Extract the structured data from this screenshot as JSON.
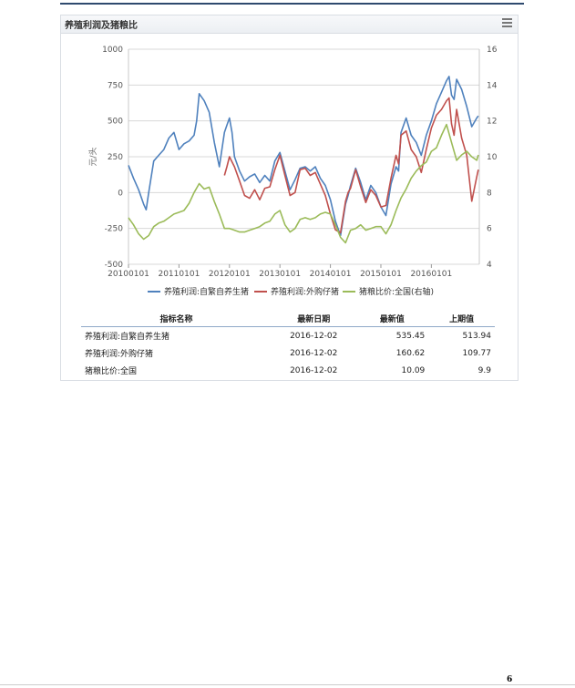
{
  "panel": {
    "title": "养殖利润及猪粮比"
  },
  "table": {
    "headers": {
      "name": "指标名称",
      "date": "最新日期",
      "latest": "最新值",
      "previous": "上期值"
    },
    "rows": [
      {
        "name": "养殖利润:自繁自养生猪",
        "date": "2016-12-02",
        "latest": "535.45",
        "previous": "513.94"
      },
      {
        "name": "养殖利润:外购仔猪",
        "date": "2016-12-02",
        "latest": "160.62",
        "previous": "109.77"
      },
      {
        "name": "猪粮比价:全国",
        "date": "2016-12-02",
        "latest": "10.09",
        "previous": "9.9"
      }
    ]
  },
  "page_number": "6",
  "chart_data": {
    "type": "line",
    "title": "",
    "ylabel": "元/头",
    "y2label": "",
    "ylim": [
      -500,
      1000
    ],
    "y2lim": [
      4,
      16
    ],
    "yticks": [
      "1000",
      "750",
      "500",
      "250",
      "0",
      "-250",
      "-500"
    ],
    "y2ticks": [
      "16",
      "14",
      "12",
      "10",
      "8",
      "6",
      "4"
    ],
    "xlim": [
      2010.0,
      2016.95
    ],
    "xticks": [
      {
        "value": 2010.0,
        "label": "20100101"
      },
      {
        "value": 2011.0,
        "label": "20110101"
      },
      {
        "value": 2012.0,
        "label": "20120101"
      },
      {
        "value": 2013.0,
        "label": "20130101"
      },
      {
        "value": 2014.0,
        "label": "20140101"
      },
      {
        "value": 2015.0,
        "label": "20150101"
      },
      {
        "value": 2016.0,
        "label": "20160101"
      }
    ],
    "grid": true,
    "legend": "bottom",
    "series": [
      {
        "name": "养殖利润:自繁自养生猪",
        "axis": "left",
        "color": "#4f81bd",
        "x": [
          2010.0,
          2010.1,
          2010.2,
          2010.3,
          2010.35,
          2010.4,
          2010.5,
          2010.6,
          2010.7,
          2010.8,
          2010.9,
          2011.0,
          2011.1,
          2011.2,
          2011.3,
          2011.35,
          2011.4,
          2011.5,
          2011.6,
          2011.7,
          2011.8,
          2011.9,
          2011.95,
          2012.0,
          2012.05,
          2012.1,
          2012.2,
          2012.3,
          2012.4,
          2012.5,
          2012.6,
          2012.7,
          2012.8,
          2012.9,
          2013.0,
          2013.1,
          2013.2,
          2013.3,
          2013.4,
          2013.5,
          2013.6,
          2013.7,
          2013.8,
          2013.9,
          2014.0,
          2014.1,
          2014.2,
          2014.3,
          2014.35,
          2014.4,
          2014.5,
          2014.6,
          2014.7,
          2014.8,
          2014.9,
          2015.0,
          2015.1,
          2015.2,
          2015.3,
          2015.35,
          2015.4,
          2015.5,
          2015.6,
          2015.7,
          2015.8,
          2015.9,
          2016.0,
          2016.1,
          2016.2,
          2016.3,
          2016.35,
          2016.4,
          2016.45,
          2016.5,
          2016.6,
          2016.7,
          2016.8,
          2016.9,
          2016.93
        ],
        "y": [
          190,
          100,
          20,
          -80,
          -120,
          0,
          220,
          260,
          300,
          380,
          420,
          300,
          340,
          360,
          400,
          500,
          690,
          640,
          560,
          350,
          180,
          420,
          470,
          520,
          420,
          250,
          150,
          80,
          110,
          130,
          70,
          120,
          80,
          220,
          280,
          150,
          20,
          90,
          170,
          180,
          150,
          180,
          100,
          50,
          -50,
          -200,
          -300,
          -80,
          -20,
          50,
          170,
          70,
          -50,
          50,
          0,
          -100,
          -160,
          60,
          180,
          150,
          420,
          520,
          400,
          350,
          260,
          400,
          500,
          620,
          700,
          780,
          810,
          680,
          650,
          790,
          720,
          600,
          460,
          520,
          535
        ]
      },
      {
        "name": "养殖利润:外购仔猪",
        "axis": "left",
        "color": "#c0504d",
        "x": [
          2011.9,
          2011.95,
          2012.0,
          2012.1,
          2012.2,
          2012.3,
          2012.4,
          2012.5,
          2012.6,
          2012.7,
          2012.8,
          2012.9,
          2013.0,
          2013.1,
          2013.2,
          2013.3,
          2013.4,
          2013.5,
          2013.6,
          2013.7,
          2013.8,
          2013.9,
          2014.0,
          2014.1,
          2014.2,
          2014.3,
          2014.35,
          2014.4,
          2014.5,
          2014.6,
          2014.7,
          2014.8,
          2014.9,
          2015.0,
          2015.1,
          2015.2,
          2015.3,
          2015.35,
          2015.4,
          2015.5,
          2015.6,
          2015.7,
          2015.8,
          2015.9,
          2016.0,
          2016.1,
          2016.2,
          2016.3,
          2016.35,
          2016.4,
          2016.45,
          2016.5,
          2016.6,
          2016.7,
          2016.8,
          2016.9,
          2016.93
        ],
        "y": [
          120,
          180,
          250,
          180,
          80,
          -20,
          -40,
          20,
          -50,
          30,
          40,
          160,
          260,
          120,
          -20,
          0,
          160,
          170,
          120,
          140,
          60,
          -20,
          -150,
          -260,
          -280,
          -60,
          0,
          30,
          160,
          40,
          -70,
          20,
          -20,
          -100,
          -90,
          100,
          260,
          200,
          400,
          430,
          300,
          250,
          140,
          300,
          450,
          540,
          580,
          640,
          660,
          480,
          400,
          580,
          380,
          260,
          -60,
          110,
          160
        ]
      },
      {
        "name": "猪粮比价:全国(右轴)",
        "axis": "right",
        "color": "#9bbb59",
        "x": [
          2010.0,
          2010.1,
          2010.2,
          2010.3,
          2010.4,
          2010.5,
          2010.6,
          2010.7,
          2010.8,
          2010.9,
          2011.0,
          2011.1,
          2011.2,
          2011.3,
          2011.4,
          2011.5,
          2011.6,
          2011.7,
          2011.8,
          2011.9,
          2012.0,
          2012.1,
          2012.2,
          2012.3,
          2012.4,
          2012.5,
          2012.6,
          2012.7,
          2012.8,
          2012.9,
          2013.0,
          2013.1,
          2013.2,
          2013.3,
          2013.4,
          2013.5,
          2013.6,
          2013.7,
          2013.8,
          2013.9,
          2014.0,
          2014.1,
          2014.2,
          2014.3,
          2014.4,
          2014.5,
          2014.6,
          2014.7,
          2014.8,
          2014.9,
          2015.0,
          2015.1,
          2015.2,
          2015.3,
          2015.4,
          2015.5,
          2015.6,
          2015.7,
          2015.8,
          2015.9,
          2016.0,
          2016.1,
          2016.2,
          2016.3,
          2016.4,
          2016.5,
          2016.6,
          2016.7,
          2016.8,
          2016.9,
          2016.93
        ],
        "y": [
          6.6,
          6.2,
          5.7,
          5.4,
          5.6,
          6.1,
          6.3,
          6.4,
          6.6,
          6.8,
          6.9,
          7.0,
          7.4,
          8.0,
          8.5,
          8.2,
          8.3,
          7.5,
          6.8,
          6.0,
          6.0,
          5.9,
          5.8,
          5.8,
          5.9,
          6.0,
          6.1,
          6.3,
          6.4,
          6.8,
          7.0,
          6.2,
          5.8,
          6.0,
          6.5,
          6.6,
          6.5,
          6.6,
          6.8,
          6.9,
          6.8,
          6.2,
          5.5,
          5.2,
          5.9,
          6.0,
          6.2,
          5.9,
          6.0,
          6.1,
          6.1,
          5.7,
          6.2,
          7.0,
          7.7,
          8.2,
          8.8,
          9.2,
          9.5,
          9.7,
          10.3,
          10.5,
          11.2,
          11.8,
          10.8,
          9.8,
          10.1,
          10.3,
          10.0,
          9.8,
          10.1
        ]
      }
    ]
  }
}
